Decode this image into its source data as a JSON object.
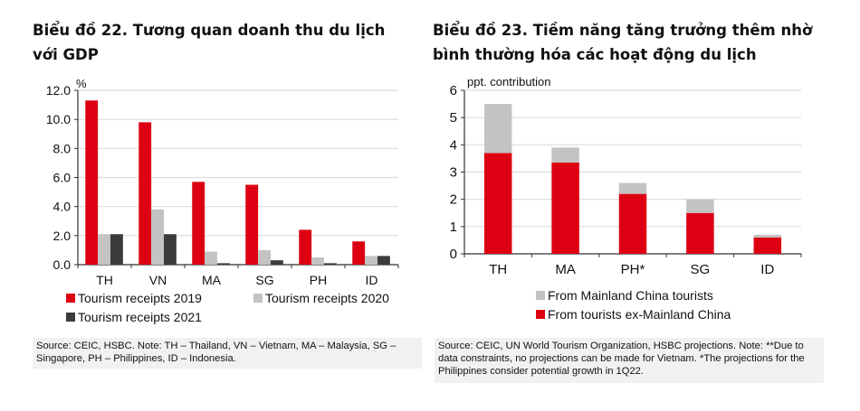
{
  "colors": {
    "red": "#dc0012",
    "light_gray": "#c3c3c3",
    "dark_gray": "#3b3b3b",
    "grid": "#dcdcdc",
    "axis": "#333333",
    "source_bg": "#f1f1f1"
  },
  "left": {
    "title": "Biểu đồ 22. Tương quan doanh thu du lịch với GDP",
    "source": "Source: CEIC, HSBC. Note: TH – Thailand, VN – Vietnam, MA – Malaysia, SG – Singapore, PH – Philippines, ID – Indonesia."
  },
  "right": {
    "title": "Biểu đồ 23. Tiềm năng tăng trưởng thêm nhờ bình thường hóa các hoạt động du lịch",
    "source": "Source: CEIC, UN World Tourism Organization, HSBC projections. Note: **Due to data constraints, no projections can be made for Vietnam. *The projections for the Philippines consider potential growth in 1Q22."
  },
  "chart_data": [
    {
      "type": "bar",
      "title": "Biểu đồ 22. Tương quan doanh thu du lịch với GDP",
      "xlabel": "",
      "ylabel": "%",
      "ylim": [
        0,
        12
      ],
      "yticks": [
        0,
        2,
        4,
        6,
        8,
        10,
        12
      ],
      "ytick_labels": [
        "0.0",
        "2.0",
        "4.0",
        "6.0",
        "8.0",
        "10.0",
        "12.0"
      ],
      "grid": true,
      "legend_position": "bottom",
      "categories": [
        "TH",
        "VN",
        "MA",
        "SG",
        "PH",
        "ID"
      ],
      "series": [
        {
          "name": "Tourism receipts 2019",
          "color": "#dc0012",
          "values": [
            11.3,
            9.8,
            5.7,
            5.5,
            2.4,
            1.6
          ]
        },
        {
          "name": "Tourism receipts 2020",
          "color": "#c3c3c3",
          "values": [
            2.1,
            3.8,
            0.9,
            1.0,
            0.5,
            0.6
          ]
        },
        {
          "name": "Tourism receipts 2021",
          "color": "#3b3b3b",
          "values": [
            2.1,
            2.1,
            0.1,
            0.3,
            0.1,
            0.6
          ]
        }
      ]
    },
    {
      "type": "bar",
      "stacked": true,
      "title": "Biểu đồ 23. Tiềm năng tăng trưởng thêm nhờ bình thường hóa các hoạt động du lịch",
      "xlabel": "",
      "ylabel": "ppt. contribution",
      "ylim": [
        0,
        6
      ],
      "yticks": [
        0,
        1,
        2,
        3,
        4,
        5,
        6
      ],
      "ytick_labels": [
        "0",
        "1",
        "2",
        "3",
        "4",
        "5",
        "6"
      ],
      "grid": true,
      "legend_position": "bottom",
      "categories": [
        "TH",
        "MA",
        "PH*",
        "SG",
        "ID"
      ],
      "series": [
        {
          "name": "From tourists ex-Mainland China",
          "color": "#dc0012",
          "values": [
            3.7,
            3.35,
            2.2,
            1.5,
            0.6
          ]
        },
        {
          "name": "From Mainland China tourists",
          "color": "#c3c3c3",
          "values": [
            1.8,
            0.55,
            0.4,
            0.5,
            0.1
          ]
        }
      ],
      "legend_order": [
        "From Mainland China tourists",
        "From tourists ex-Mainland China"
      ]
    }
  ]
}
